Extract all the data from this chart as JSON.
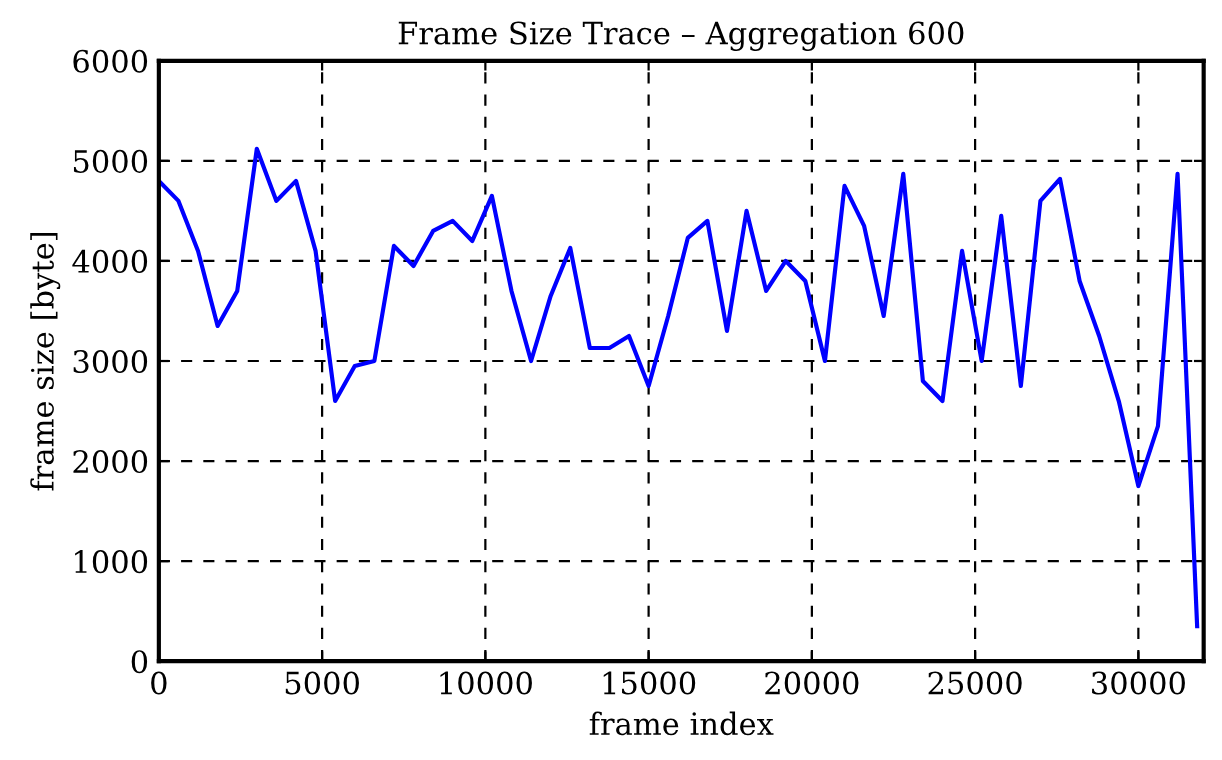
{
  "chart_data": {
    "type": "line",
    "title": "Frame Size Trace – Aggregation 600",
    "xlabel": "frame index",
    "ylabel": "frame size [byte]",
    "x": [
      0,
      600,
      1200,
      1800,
      2400,
      3000,
      3600,
      4200,
      4800,
      5400,
      6000,
      6600,
      7200,
      7800,
      8400,
      9000,
      9600,
      10200,
      10800,
      11400,
      12000,
      12600,
      13200,
      13800,
      14400,
      15000,
      15600,
      16200,
      16800,
      17400,
      18000,
      18600,
      19200,
      19800,
      20400,
      21000,
      21600,
      22200,
      22800,
      23400,
      24000,
      24600,
      25200,
      25800,
      26400,
      27000,
      27600,
      28200,
      28800,
      29400,
      30000,
      30600,
      31200,
      31800
    ],
    "series": [
      {
        "color": "#0000ff",
        "values": [
          4800,
          4600,
          4100,
          3350,
          3700,
          5120,
          4600,
          4800,
          4100,
          2600,
          2950,
          3000,
          4150,
          3950,
          4300,
          4400,
          4200,
          4650,
          3700,
          3000,
          3650,
          4130,
          3130,
          3130,
          3250,
          2750,
          3450,
          4230,
          4400,
          3300,
          4500,
          3700,
          4000,
          3800,
          3000,
          4750,
          4350,
          3450,
          4870,
          2800,
          2600,
          4100,
          3000,
          4450,
          2750,
          4600,
          4820,
          3800,
          3250,
          2600,
          1750,
          2350,
          4870,
          350
        ]
      }
    ],
    "xlim": [
      0,
      32000
    ],
    "ylim": [
      0,
      6000
    ],
    "xticks": [
      0,
      5000,
      10000,
      15000,
      20000,
      25000,
      30000
    ],
    "yticks": [
      0,
      1000,
      2000,
      3000,
      4000,
      5000,
      6000
    ],
    "grid": true,
    "marker": "none",
    "line_style": "solid"
  }
}
